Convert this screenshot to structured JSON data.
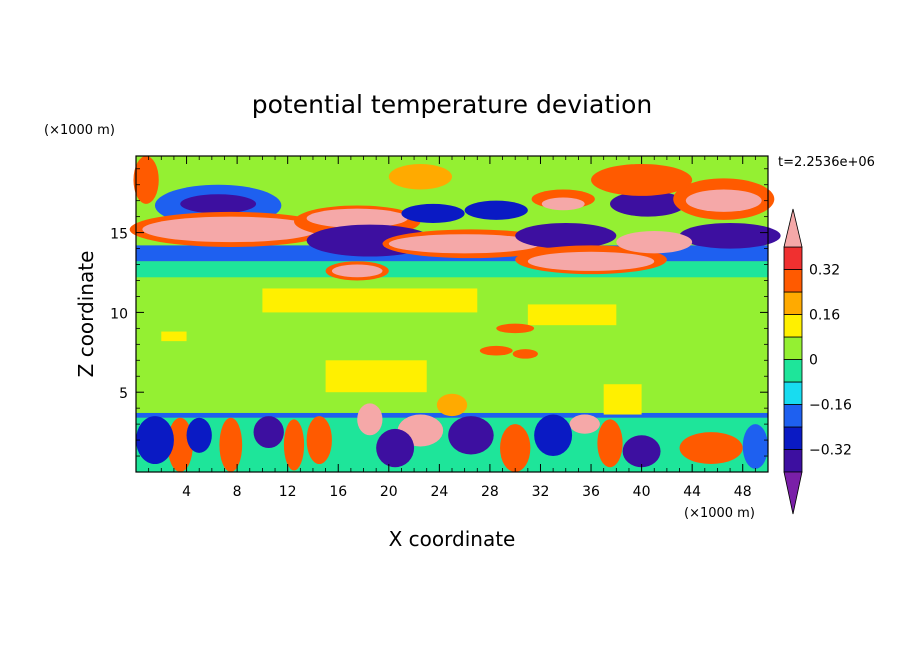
{
  "chart_data": {
    "type": "heatmap",
    "subtype": "filled-contour",
    "title": "potential temperature deviation",
    "xlabel": "X coordinate",
    "ylabel": "Z coordinate",
    "x_unit_label": "(×1000 m)",
    "y_unit_label": "(×1000 m)",
    "time_label": "t=2.2536e+06",
    "xlim": [
      0,
      50
    ],
    "ylim": [
      0,
      19.8
    ],
    "x_ticks": [
      4,
      8,
      12,
      16,
      20,
      24,
      28,
      32,
      36,
      40,
      44,
      48
    ],
    "y_ticks": [
      5,
      10,
      15
    ],
    "colorbar": {
      "levels": [
        -0.4,
        -0.32,
        -0.24,
        -0.16,
        -0.08,
        0,
        0.08,
        0.16,
        0.24,
        0.32,
        0.4
      ],
      "colors": [
        "#7a1fa8",
        "#3d0fa0",
        "#0a1ac4",
        "#1e60f0",
        "#18dcf0",
        "#1ee59a",
        "#94f032",
        "#fff000",
        "#ffaa00",
        "#ff5a00",
        "#f03030",
        "#f5a8a8"
      ],
      "labeled_ticks": [
        0.32,
        0.16,
        0,
        -0.16,
        -0.32
      ],
      "tick_labels": [
        "0.32",
        "0.16",
        "0",
        "−0.16",
        "−0.32"
      ],
      "extend": "both"
    },
    "background_value": 0.03,
    "features": [
      {
        "x": [
          0,
          50
        ],
        "z": [
          13.2,
          14.2
        ],
        "v": -0.2,
        "kind": "band"
      },
      {
        "x": [
          0,
          50
        ],
        "z": [
          12.2,
          13.2
        ],
        "v": -0.06,
        "kind": "band"
      },
      {
        "x": [
          0,
          50
        ],
        "z": [
          0,
          3.4
        ],
        "v": -0.05,
        "kind": "band"
      },
      {
        "x": [
          0,
          50
        ],
        "z": [
          3.4,
          3.7
        ],
        "v": -0.2,
        "kind": "band"
      },
      {
        "x": [
          10,
          27
        ],
        "z": [
          10.0,
          11.5
        ],
        "v": 0.1,
        "kind": "band"
      },
      {
        "x": [
          31,
          38
        ],
        "z": [
          9.2,
          10.5
        ],
        "v": 0.1,
        "kind": "band"
      },
      {
        "x": [
          15,
          23
        ],
        "z": [
          5.0,
          7.0
        ],
        "v": 0.1,
        "kind": "band"
      },
      {
        "x": [
          37,
          40
        ],
        "z": [
          3.6,
          5.5
        ],
        "v": 0.1,
        "kind": "band"
      },
      {
        "x": [
          2,
          4
        ],
        "z": [
          8.2,
          8.8
        ],
        "v": 0.1,
        "kind": "band"
      },
      {
        "cx": 6.5,
        "cz": 16.7,
        "rx": 5.0,
        "rz": 1.3,
        "v": -0.24,
        "kind": "blob"
      },
      {
        "cx": 6.5,
        "cz": 16.8,
        "rx": 3.0,
        "rz": 0.6,
        "v": -0.38,
        "kind": "blob"
      },
      {
        "cx": 7.5,
        "cz": 15.2,
        "rx": 8.0,
        "rz": 1.1,
        "v": 0.3,
        "kind": "blob"
      },
      {
        "cx": 7.5,
        "cz": 15.2,
        "rx": 7.0,
        "rz": 0.8,
        "v": 0.45,
        "kind": "blob"
      },
      {
        "cx": 17.5,
        "cz": 15.7,
        "rx": 5.0,
        "rz": 1.0,
        "v": 0.3,
        "kind": "blob"
      },
      {
        "cx": 17.5,
        "cz": 15.9,
        "rx": 4.0,
        "rz": 0.6,
        "v": 0.45,
        "kind": "blob"
      },
      {
        "cx": 18.5,
        "cz": 14.5,
        "rx": 5.0,
        "rz": 1.0,
        "v": -0.38,
        "kind": "blob"
      },
      {
        "cx": 23.5,
        "cz": 16.2,
        "rx": 2.5,
        "rz": 0.6,
        "v": -0.32,
        "kind": "blob"
      },
      {
        "cx": 28.5,
        "cz": 16.4,
        "rx": 2.5,
        "rz": 0.6,
        "v": -0.32,
        "kind": "blob"
      },
      {
        "cx": 26.5,
        "cz": 14.3,
        "rx": 7.0,
        "rz": 0.9,
        "v": 0.3,
        "kind": "blob"
      },
      {
        "cx": 26.0,
        "cz": 14.3,
        "rx": 6.0,
        "rz": 0.6,
        "v": 0.45,
        "kind": "blob"
      },
      {
        "cx": 34.0,
        "cz": 14.8,
        "rx": 4.0,
        "rz": 0.8,
        "v": -0.35,
        "kind": "blob"
      },
      {
        "cx": 33.8,
        "cz": 17.1,
        "rx": 2.5,
        "rz": 0.6,
        "v": 0.25,
        "kind": "blob"
      },
      {
        "cx": 33.8,
        "cz": 16.8,
        "rx": 1.7,
        "rz": 0.4,
        "v": 0.45,
        "kind": "blob"
      },
      {
        "cx": 40.5,
        "cz": 16.8,
        "rx": 3.0,
        "rz": 0.8,
        "v": -0.36,
        "kind": "blob"
      },
      {
        "cx": 46.5,
        "cz": 17.1,
        "rx": 4.0,
        "rz": 1.3,
        "v": 0.26,
        "kind": "blob"
      },
      {
        "cx": 46.5,
        "cz": 17.0,
        "rx": 3.0,
        "rz": 0.7,
        "v": 0.45,
        "kind": "blob"
      },
      {
        "cx": 47.0,
        "cz": 14.8,
        "rx": 4.0,
        "rz": 0.8,
        "v": -0.36,
        "kind": "blob"
      },
      {
        "cx": 36.0,
        "cz": 13.3,
        "rx": 6.0,
        "rz": 0.9,
        "v": 0.3,
        "kind": "blob"
      },
      {
        "cx": 36.0,
        "cz": 13.2,
        "rx": 5.0,
        "rz": 0.6,
        "v": 0.45,
        "kind": "blob"
      },
      {
        "cx": 41.0,
        "cz": 14.4,
        "rx": 3.0,
        "rz": 0.7,
        "v": 0.45,
        "kind": "blob"
      },
      {
        "cx": 17.5,
        "cz": 12.6,
        "rx": 2.5,
        "rz": 0.6,
        "v": 0.3,
        "kind": "blob"
      },
      {
        "cx": 17.5,
        "cz": 12.6,
        "rx": 2.0,
        "rz": 0.4,
        "v": 0.45,
        "kind": "blob"
      },
      {
        "cx": 40.0,
        "cz": 18.3,
        "rx": 4.0,
        "rz": 1.0,
        "v": 0.24,
        "kind": "blob"
      },
      {
        "cx": 22.5,
        "cz": 18.5,
        "rx": 2.5,
        "rz": 0.8,
        "v": 0.2,
        "kind": "blob"
      },
      {
        "cx": 0.8,
        "cz": 18.3,
        "rx": 1.0,
        "rz": 1.5,
        "v": 0.25,
        "kind": "blob"
      },
      {
        "cx": 3.5,
        "cz": 1.7,
        "rx": 1.0,
        "rz": 1.7,
        "v": 0.3,
        "kind": "blob"
      },
      {
        "cx": 7.5,
        "cz": 1.7,
        "rx": 0.9,
        "rz": 1.7,
        "v": 0.3,
        "kind": "blob"
      },
      {
        "cx": 12.5,
        "cz": 1.7,
        "rx": 0.8,
        "rz": 1.6,
        "v": 0.3,
        "kind": "blob"
      },
      {
        "cx": 14.5,
        "cz": 2.0,
        "rx": 1.0,
        "rz": 1.5,
        "v": 0.28,
        "kind": "blob"
      },
      {
        "cx": 18.5,
        "cz": 3.3,
        "rx": 1.0,
        "rz": 1.0,
        "v": 0.4,
        "kind": "blob"
      },
      {
        "cx": 22.5,
        "cz": 2.6,
        "rx": 1.8,
        "rz": 1.0,
        "v": 0.4,
        "kind": "blob"
      },
      {
        "cx": 30.0,
        "cz": 1.5,
        "rx": 1.2,
        "rz": 1.5,
        "v": 0.3,
        "kind": "blob"
      },
      {
        "cx": 35.5,
        "cz": 3.0,
        "rx": 1.2,
        "rz": 0.6,
        "v": 0.4,
        "kind": "blob"
      },
      {
        "cx": 37.5,
        "cz": 1.8,
        "rx": 1.0,
        "rz": 1.5,
        "v": 0.28,
        "kind": "blob"
      },
      {
        "cx": 45.5,
        "cz": 1.5,
        "rx": 2.5,
        "rz": 1.0,
        "v": 0.3,
        "kind": "blob"
      },
      {
        "cx": 1.5,
        "cz": 2.0,
        "rx": 1.5,
        "rz": 1.5,
        "v": -0.32,
        "kind": "blob"
      },
      {
        "cx": 5.0,
        "cz": 2.3,
        "rx": 1.0,
        "rz": 1.1,
        "v": -0.3,
        "kind": "blob"
      },
      {
        "cx": 10.5,
        "cz": 2.5,
        "rx": 1.2,
        "rz": 1.0,
        "v": -0.34,
        "kind": "blob"
      },
      {
        "cx": 20.5,
        "cz": 1.5,
        "rx": 1.5,
        "rz": 1.2,
        "v": -0.35,
        "kind": "blob"
      },
      {
        "cx": 26.5,
        "cz": 2.3,
        "rx": 1.8,
        "rz": 1.2,
        "v": -0.35,
        "kind": "blob"
      },
      {
        "cx": 33.0,
        "cz": 2.3,
        "rx": 1.5,
        "rz": 1.3,
        "v": -0.3,
        "kind": "blob"
      },
      {
        "cx": 40.0,
        "cz": 1.3,
        "rx": 1.5,
        "rz": 1.0,
        "v": -0.35,
        "kind": "blob"
      },
      {
        "cx": 49.0,
        "cz": 1.6,
        "rx": 1.0,
        "rz": 1.4,
        "v": -0.2,
        "kind": "blob"
      },
      {
        "cx": 25.0,
        "cz": 4.2,
        "rx": 1.2,
        "rz": 0.7,
        "v": 0.2,
        "kind": "blob"
      },
      {
        "cx": 28.5,
        "cz": 7.6,
        "rx": 1.3,
        "rz": 0.3,
        "v": 0.3,
        "kind": "blob"
      },
      {
        "cx": 30.0,
        "cz": 9.0,
        "rx": 1.5,
        "rz": 0.3,
        "v": 0.3,
        "kind": "blob"
      },
      {
        "cx": 30.8,
        "cz": 7.4,
        "rx": 1.0,
        "rz": 0.3,
        "v": 0.3,
        "kind": "blob"
      }
    ]
  }
}
